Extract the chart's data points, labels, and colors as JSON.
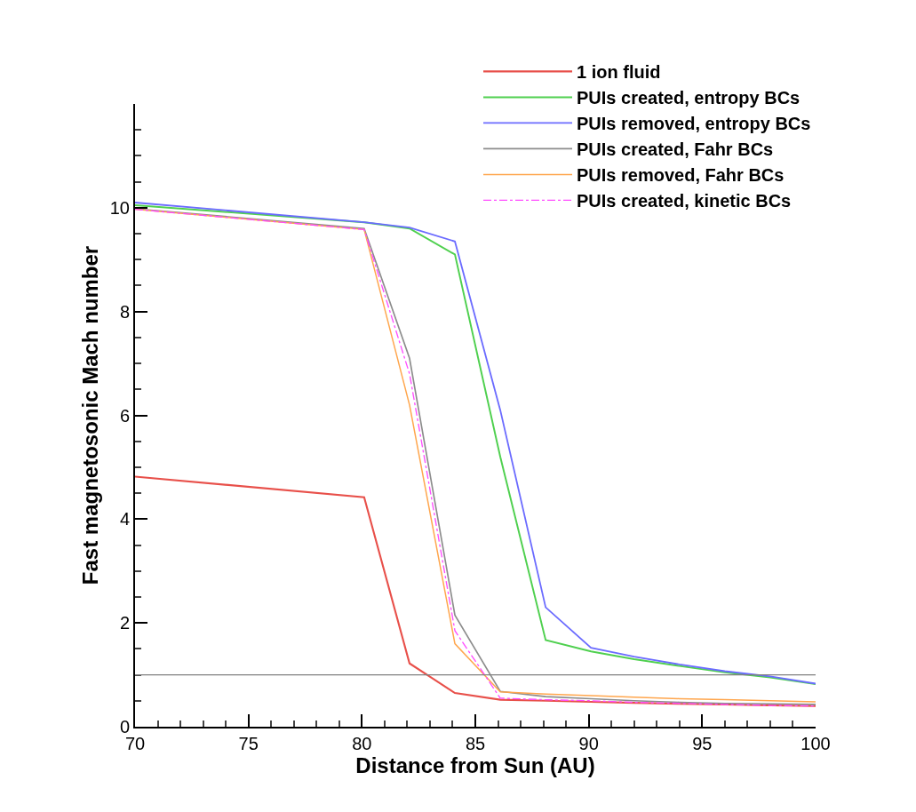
{
  "chart_data": {
    "type": "line",
    "xlabel": "Distance from Sun (AU)",
    "ylabel": "Fast magnetosonic Mach number",
    "x": [
      70,
      80.1,
      82.1,
      84.1,
      86.1,
      88.1,
      90.1,
      92,
      94,
      96,
      98,
      100
    ],
    "series": [
      {
        "name": "1 ion fluid",
        "color": "#e8504a",
        "line_style": "solid",
        "values": [
          4.82,
          4.42,
          1.22,
          0.65,
          0.52,
          0.5,
          0.48,
          0.46,
          0.44,
          0.43,
          0.41,
          0.4
        ]
      },
      {
        "name": "PUIs created, entropy BCs",
        "color": "#4fd04f",
        "line_style": "solid",
        "values": [
          10.05,
          9.72,
          9.6,
          9.1,
          5.2,
          1.67,
          1.45,
          1.3,
          1.17,
          1.05,
          0.95,
          0.82
        ]
      },
      {
        "name": "PUIs removed, entropy BCs",
        "color": "#6b6bff",
        "line_style": "solid",
        "values": [
          10.1,
          9.72,
          9.62,
          9.35,
          6.1,
          2.3,
          1.52,
          1.35,
          1.2,
          1.07,
          0.97,
          0.83
        ]
      },
      {
        "name": "PUIs created, Fahr BCs",
        "color": "#8c8c8c",
        "line_style": "solid",
        "values": [
          9.98,
          9.6,
          7.1,
          2.15,
          0.68,
          0.58,
          0.54,
          0.5,
          0.47,
          0.45,
          0.44,
          0.43
        ]
      },
      {
        "name": "PUIs removed, Fahr BCs",
        "color": "#ffa64d",
        "line_style": "solid",
        "values": [
          9.97,
          9.58,
          6.2,
          1.6,
          0.67,
          0.63,
          0.6,
          0.57,
          0.54,
          0.52,
          0.5,
          0.48
        ]
      },
      {
        "name": "PUIs created, kinetic BCs",
        "color": "#ff4dff",
        "line_style": "dashdot",
        "values": [
          9.97,
          9.58,
          6.8,
          1.85,
          0.55,
          0.52,
          0.5,
          0.47,
          0.45,
          0.43,
          0.41,
          0.4
        ]
      }
    ],
    "ref_lines": [
      {
        "axis": "y",
        "value": 1,
        "color": "#808080",
        "line_style": "solid"
      }
    ],
    "xlim": [
      70,
      100
    ],
    "xticks": [
      70,
      75,
      80,
      85,
      90,
      95,
      100
    ],
    "ylim": [
      0,
      12
    ],
    "yticks": [
      0,
      2,
      4,
      6,
      8,
      10
    ],
    "legend": "top right",
    "marker": "none"
  }
}
